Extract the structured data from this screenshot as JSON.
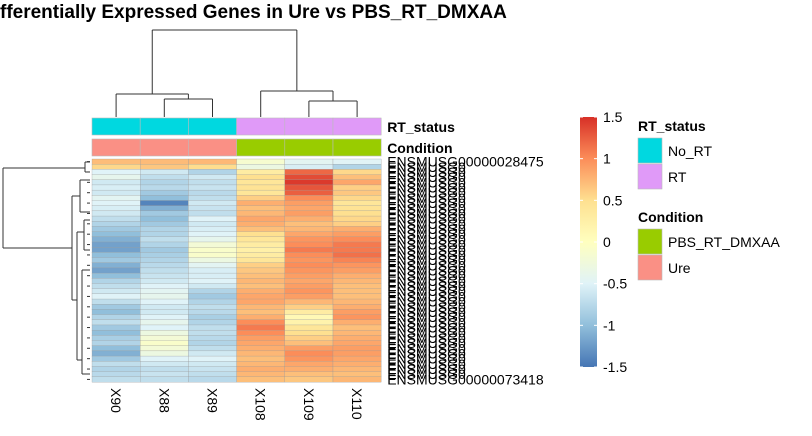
{
  "title": "fferentially Expressed Genes in Ure vs PBS_RT_DMXAA",
  "chart_data": {
    "type": "heatmap",
    "title": "fferentially Expressed Genes in Ure vs PBS_RT_DMXAA",
    "samples": [
      "X90",
      "X88",
      "X89",
      "X108",
      "X109",
      "X110"
    ],
    "annotation_rows": [
      "RT_status",
      "Condition"
    ],
    "annotations": {
      "RT_status": [
        "No_RT",
        "No_RT",
        "No_RT",
        "RT",
        "RT",
        "RT"
      ],
      "Condition": [
        "Ure",
        "Ure",
        "Ure",
        "PBS_RT_DMXAA",
        "PBS_RT_DMXAA",
        "PBS_RT_DMXAA"
      ]
    },
    "legend": {
      "RT_status": {
        "title": "RT_status",
        "items": [
          {
            "label": "No_RT",
            "color": "#00d8e0"
          },
          {
            "label": "RT",
            "color": "#e09af8"
          }
        ]
      },
      "Condition": {
        "title": "Condition",
        "items": [
          {
            "label": "PBS_RT_DMXAA",
            "color": "#99cc00"
          },
          {
            "label": "Ure",
            "color": "#fa9085"
          }
        ]
      }
    },
    "color_scale": {
      "min": -1.5,
      "max": 1.5,
      "ticks": [
        "1.5",
        "1",
        "0.5",
        "0",
        "-0.5",
        "-1",
        "-1.5"
      ],
      "tick_values": [
        1.5,
        1,
        0.5,
        0,
        -0.5,
        -1,
        -1.5
      ],
      "colors": [
        "#4575b4",
        "#91bfdb",
        "#e0f3f8",
        "#ffffbf",
        "#fee090",
        "#fc8d59",
        "#d73027"
      ]
    },
    "genes_first": "ENSMUSG00000028475",
    "genes_last": "ENSMUSG00000073418",
    "values": [
      [
        0.71,
        0.72,
        0.74,
        -0.14,
        -0.45,
        -0.48
      ],
      [
        0.55,
        0.65,
        0.52,
        -0.3,
        -0.55,
        -0.8
      ],
      [
        -0.5,
        -0.6,
        -0.8,
        0.3,
        1.2,
        0.55
      ],
      [
        -0.4,
        -0.7,
        -0.6,
        0.5,
        1.35,
        0.7
      ],
      [
        -0.6,
        -0.8,
        -0.7,
        0.4,
        1.45,
        0.85
      ],
      [
        -0.55,
        -0.75,
        -0.65,
        0.45,
        1.3,
        0.6
      ],
      [
        -0.6,
        -0.9,
        -0.75,
        0.4,
        1.25,
        0.65
      ],
      [
        -0.45,
        -1.0,
        -0.7,
        0.6,
        1.0,
        0.55
      ],
      [
        -0.5,
        -1.4,
        -0.6,
        0.8,
        0.9,
        0.4
      ],
      [
        -0.55,
        -1.1,
        -0.65,
        0.7,
        0.85,
        0.45
      ],
      [
        -0.6,
        -0.9,
        -0.7,
        0.75,
        0.9,
        0.5
      ],
      [
        -0.7,
        -1.0,
        -0.5,
        0.85,
        0.8,
        0.55
      ],
      [
        -0.8,
        -0.9,
        -0.6,
        0.8,
        0.7,
        0.6
      ],
      [
        -0.9,
        -0.8,
        -0.55,
        0.7,
        0.75,
        0.8
      ],
      [
        -1.0,
        -0.8,
        -0.5,
        0.5,
        0.85,
        0.9
      ],
      [
        -1.1,
        -0.7,
        -0.4,
        0.4,
        0.95,
        1.0
      ],
      [
        -1.2,
        -0.8,
        -0.2,
        0.3,
        1.0,
        1.1
      ],
      [
        -1.2,
        -0.9,
        -0.1,
        0.25,
        1.1,
        1.1
      ],
      [
        -1.0,
        -0.85,
        -0.1,
        0.3,
        1.0,
        1.15
      ],
      [
        -0.9,
        -0.8,
        -0.3,
        0.4,
        0.95,
        1.05
      ],
      [
        -1.1,
        -0.75,
        -0.45,
        0.6,
        1.0,
        0.95
      ],
      [
        -1.2,
        -0.7,
        -0.55,
        0.65,
        0.95,
        0.9
      ],
      [
        -1.0,
        -0.65,
        -0.55,
        0.7,
        0.9,
        0.8
      ],
      [
        -0.8,
        -0.6,
        -0.5,
        0.75,
        0.85,
        0.75
      ],
      [
        -0.7,
        -0.5,
        -0.6,
        0.7,
        0.9,
        0.7
      ],
      [
        -0.6,
        -0.45,
        -0.8,
        0.8,
        0.95,
        0.7
      ],
      [
        -0.5,
        -0.4,
        -0.9,
        0.85,
        0.9,
        0.7
      ],
      [
        -0.7,
        -0.5,
        -0.8,
        0.85,
        0.75,
        0.75
      ],
      [
        -0.9,
        -0.6,
        -0.7,
        0.75,
        0.6,
        0.8
      ],
      [
        -1.0,
        -0.6,
        -0.75,
        0.7,
        0.3,
        0.9
      ],
      [
        -0.8,
        -0.5,
        -0.85,
        0.8,
        0.1,
        0.95
      ],
      [
        -0.7,
        -0.4,
        -0.8,
        1.0,
        0.2,
        0.8
      ],
      [
        -0.9,
        -0.5,
        -0.7,
        1.1,
        0.4,
        0.7
      ],
      [
        -1.0,
        -0.3,
        -0.7,
        1.0,
        0.5,
        0.75
      ],
      [
        -0.85,
        -0.2,
        -0.75,
        0.9,
        0.6,
        0.8
      ],
      [
        -0.8,
        -0.1,
        -0.8,
        0.85,
        0.7,
        0.85
      ],
      [
        -1.0,
        -0.2,
        -0.7,
        0.8,
        0.9,
        0.9
      ],
      [
        -1.1,
        -0.3,
        -0.6,
        0.75,
        1.0,
        0.9
      ],
      [
        -0.9,
        -0.5,
        -0.5,
        0.7,
        0.95,
        0.85
      ],
      [
        -0.7,
        -0.6,
        -0.6,
        0.75,
        0.85,
        0.8
      ],
      [
        -0.8,
        -0.7,
        -0.65,
        0.8,
        0.8,
        0.75
      ],
      [
        -0.75,
        -0.65,
        -0.7,
        0.75,
        0.7,
        0.7
      ],
      [
        -0.7,
        -0.7,
        -0.75,
        0.7,
        0.65,
        0.75
      ]
    ]
  }
}
